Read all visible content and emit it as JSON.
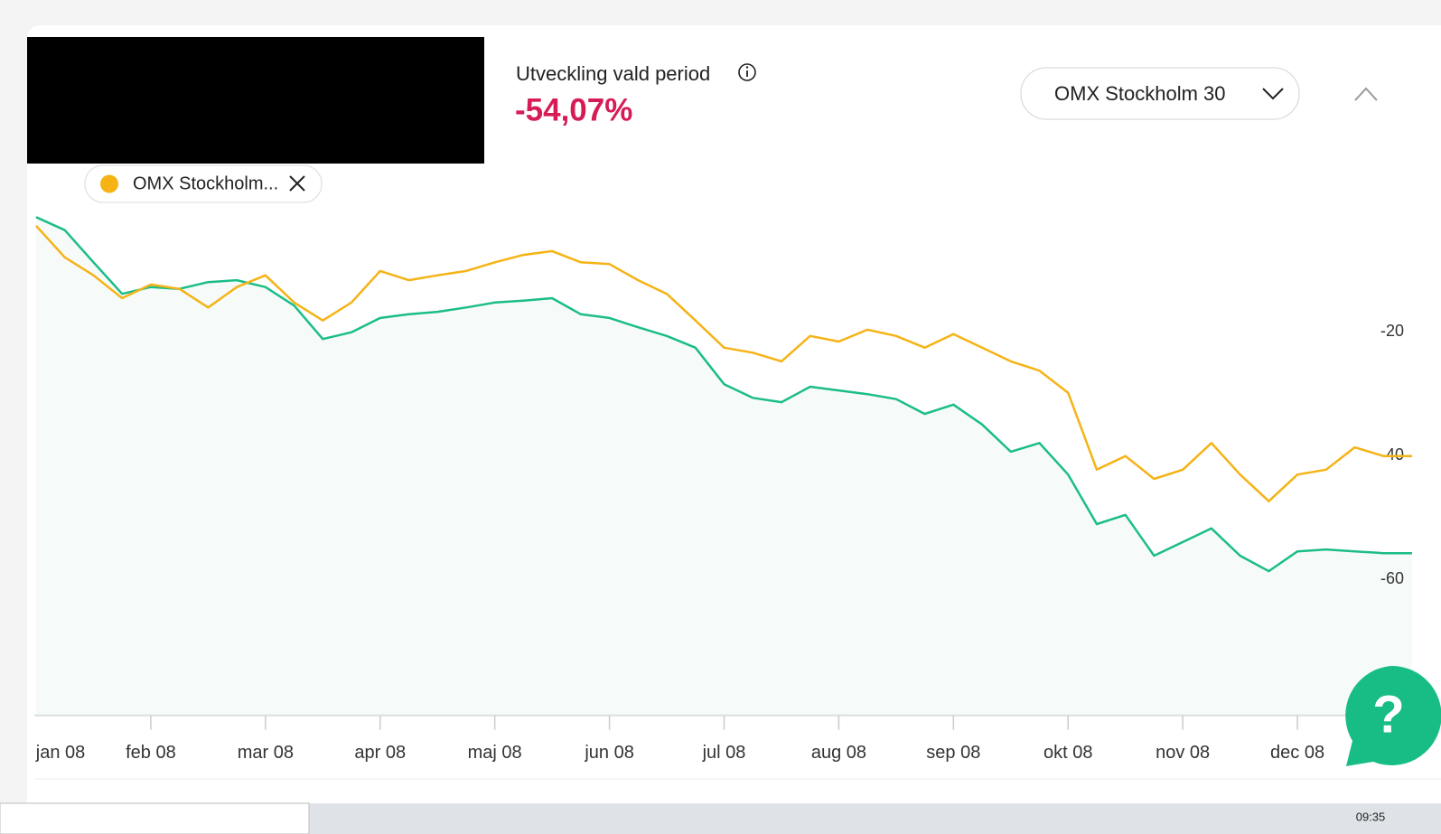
{
  "header": {
    "title": "Utveckling vald period",
    "change": "-54,07%"
  },
  "dropdown": {
    "label": "OMX Stockholm 30"
  },
  "help": {
    "label": "?"
  },
  "taskbar": {
    "clock": "09:35"
  },
  "chart_data": {
    "type": "line",
    "categories": [
      "jan 08",
      null,
      null,
      null,
      "feb 08",
      null,
      null,
      null,
      "mar 08",
      null,
      null,
      null,
      "apr 08",
      null,
      null,
      null,
      "maj 08",
      null,
      null,
      null,
      "jun 08",
      null,
      null,
      null,
      "jul 08",
      null,
      null,
      null,
      "aug 08",
      null,
      null,
      null,
      "sep 08",
      null,
      null,
      null,
      "okt 08",
      null,
      null,
      null,
      "nov 08",
      null,
      null,
      null,
      "dec 08",
      null,
      null,
      null,
      null
    ],
    "series": [
      {
        "color": "#1bbd86",
        "area": true,
        "values": [
          -1.5,
          -3.6,
          -8.8,
          -13.9,
          -12.8,
          -13.1,
          -12.0,
          -11.7,
          -12.8,
          -15.8,
          -21.2,
          -20.1,
          -17.8,
          -17.2,
          -16.8,
          -16.1,
          -15.3,
          -15.0,
          -14.6,
          -17.2,
          -17.8,
          -19.3,
          -20.7,
          -22.6,
          -28.5,
          -30.7,
          -31.4,
          -28.9,
          -29.5,
          -30.1,
          -30.9,
          -33.3,
          -31.8,
          -35.0,
          -39.4,
          -38.0,
          -43.1,
          -51.1,
          -49.6,
          -56.2,
          -54.0,
          -51.8,
          -56.2,
          -58.7,
          -55.5,
          -55.2,
          -55.5,
          -55.8,
          -55.8
        ]
      },
      {
        "name": "OMX Stockholm...",
        "color": "#f5b316",
        "values": [
          -2.9,
          -8.0,
          -10.9,
          -14.6,
          -12.4,
          -13.1,
          -16.1,
          -12.8,
          -10.9,
          -15.3,
          -18.2,
          -15.3,
          -10.2,
          -11.7,
          -10.9,
          -10.2,
          -8.8,
          -7.6,
          -7.0,
          -8.8,
          -9.1,
          -11.7,
          -13.9,
          -18.2,
          -22.6,
          -23.4,
          -24.8,
          -20.7,
          -21.6,
          -19.7,
          -20.7,
          -22.6,
          -20.4,
          -22.6,
          -24.8,
          -26.3,
          -29.9,
          -42.3,
          -40.1,
          -43.8,
          -42.3,
          -38.0,
          -43.1,
          -47.4,
          -43.1,
          -42.3,
          -38.7,
          -40.1,
          -40.1
        ]
      }
    ],
    "ylim": [
      -82,
      2
    ],
    "yticks": [
      -20,
      -40,
      -60
    ],
    "grid": false
  }
}
